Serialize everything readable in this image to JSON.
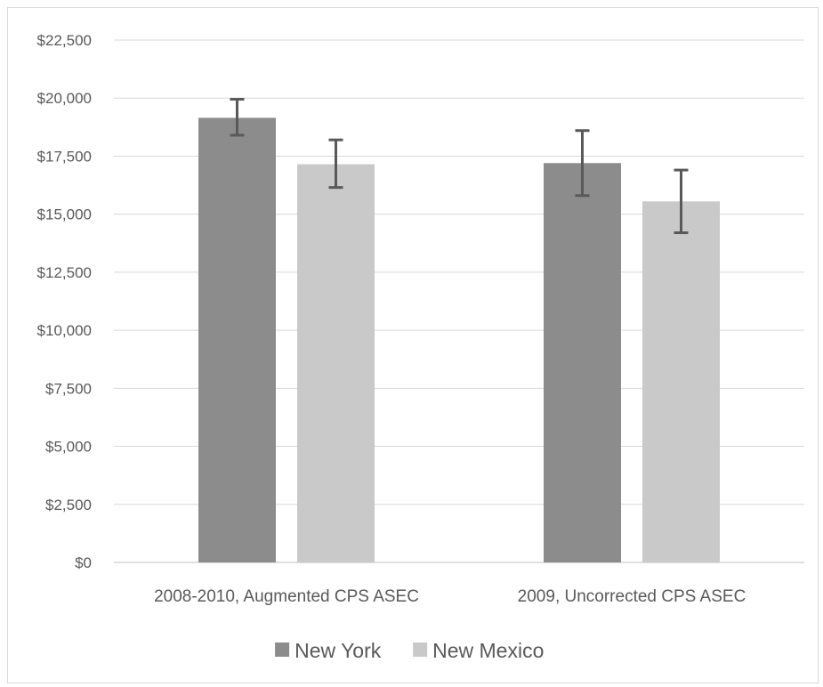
{
  "chart_data": {
    "type": "bar",
    "title": "",
    "xlabel": "",
    "ylabel": "",
    "categories": [
      "2008-2010, Augmented CPS ASEC",
      "2009, Uncorrected CPS ASEC"
    ],
    "series": [
      {
        "name": "New York",
        "color": "#8c8c8c",
        "values": [
          19150,
          17200
        ],
        "error_low": [
          18400,
          15800
        ],
        "error_high": [
          19950,
          18600
        ]
      },
      {
        "name": "New Mexico",
        "color": "#c9c9c9",
        "values": [
          17150,
          15550
        ],
        "error_low": [
          16150,
          14200
        ],
        "error_high": [
          18200,
          16900
        ]
      }
    ],
    "ylim": [
      0,
      22500
    ],
    "yticks": [
      0,
      2500,
      5000,
      7500,
      10000,
      12500,
      15000,
      17500,
      20000,
      22500
    ],
    "ytick_labels": [
      "$0",
      "$2,500",
      "$5,000",
      "$7,500",
      "$10,000",
      "$12,500",
      "$15,000",
      "$17,500",
      "$20,000",
      "$22,500"
    ],
    "grid": true,
    "legend_position": "bottom",
    "error_bar_color": "#595959"
  }
}
